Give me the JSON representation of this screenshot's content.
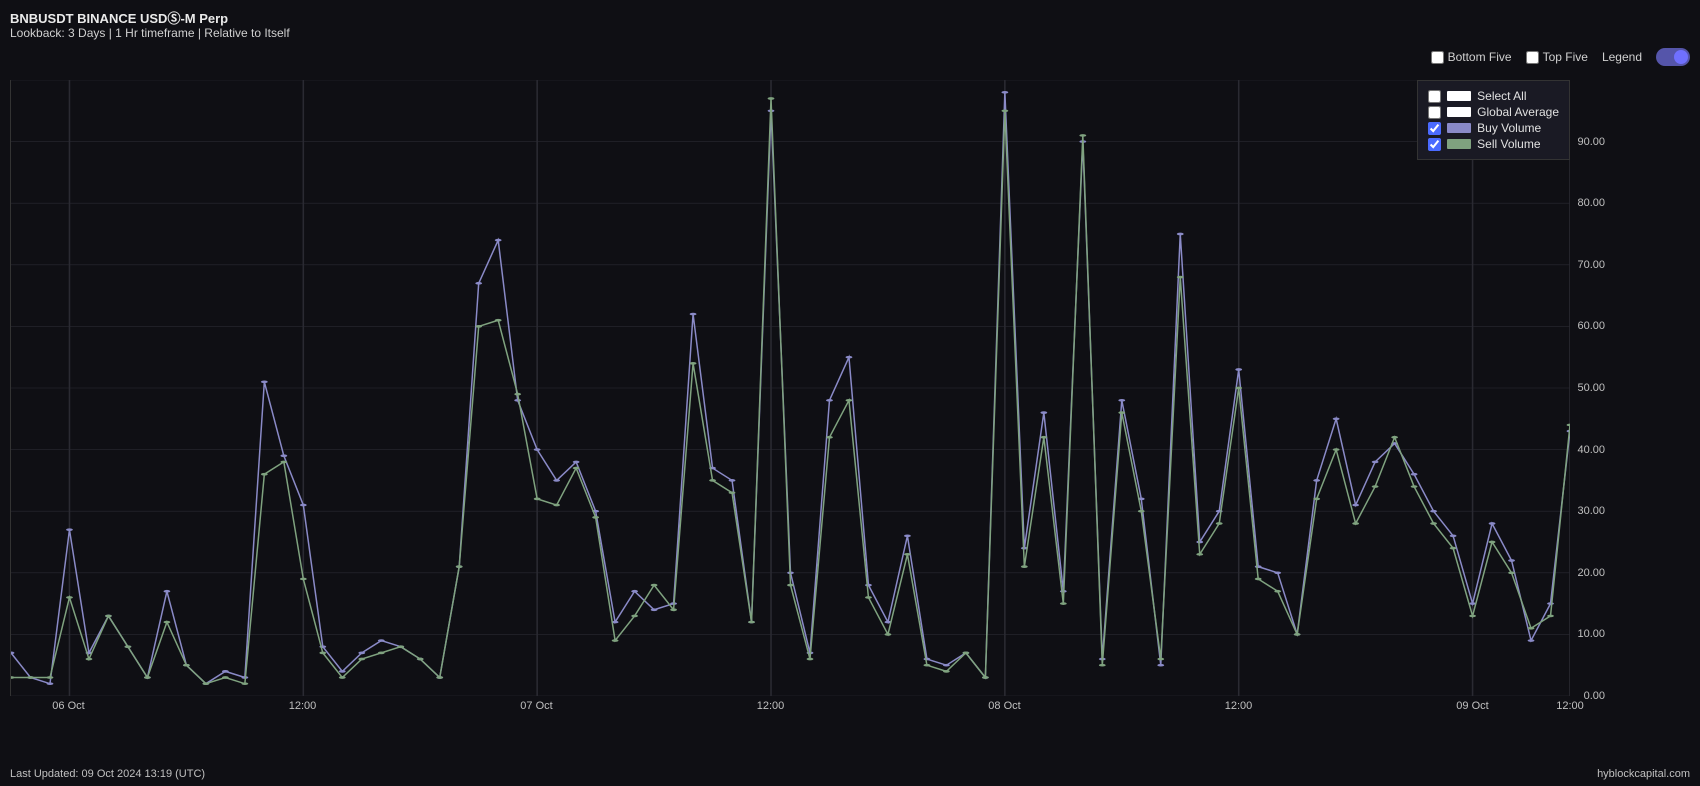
{
  "header": {
    "title": "BNBUSDT BINANCE USDⓈ-M Perp",
    "subtitle": "Lookback: 3 Days | 1 Hr timeframe | Relative to Itself"
  },
  "controls": {
    "bottom_five": "Bottom Five",
    "top_five": "Top Five",
    "legend_label": "Legend"
  },
  "legend": {
    "select_all": "Select All",
    "global_average": "Global Average",
    "buy_volume": "Buy Volume",
    "sell_volume": "Sell Volume",
    "select_all_checked": false,
    "global_average_checked": false,
    "buy_volume_checked": true,
    "sell_volume_checked": true,
    "select_all_color": "#ffffff",
    "global_average_color": "#ffffff",
    "buy_volume_color": "#8a8ac7",
    "sell_volume_color": "#7fa27f"
  },
  "chart": {
    "type": "line",
    "background_color": "#0f0f14",
    "grid_color": "#2a2a32",
    "ylim": [
      0,
      100
    ],
    "ytick_step": 10,
    "ytick_labels": [
      "0.00",
      "10.00",
      "20.00",
      "30.00",
      "40.00",
      "50.00",
      "60.00",
      "70.00",
      "80.00",
      "90.00"
    ],
    "x_count": 72,
    "x_gridlines_at": [
      3,
      15,
      27,
      39,
      51,
      63,
      72
    ],
    "x_tick_positions": [
      3,
      15,
      27,
      39,
      51,
      63,
      72
    ],
    "x_tick_labels": [
      "06 Oct",
      "12:00",
      "07 Oct",
      "12:00",
      "08 Oct",
      "12:00",
      "09 Oct",
      "12:00"
    ],
    "x_tick_labels_positions": [
      3,
      15,
      27,
      39,
      51,
      63,
      72,
      72
    ],
    "series": [
      {
        "name": "buy_volume",
        "color": "#8a8ac7",
        "data": [
          7,
          3,
          2,
          27,
          7,
          13,
          8,
          3,
          17,
          5,
          2,
          4,
          3,
          51,
          39,
          31,
          8,
          4,
          7,
          9,
          8,
          6,
          3,
          21,
          67,
          74,
          48,
          40,
          35,
          38,
          30,
          12,
          17,
          14,
          15,
          62,
          37,
          35,
          12,
          95,
          20,
          7,
          48,
          55,
          18,
          12,
          26,
          6,
          5,
          7,
          3,
          98,
          24,
          46,
          17,
          90,
          6,
          48,
          32,
          5,
          75,
          25,
          30,
          53,
          21,
          20,
          10,
          35,
          45,
          31,
          38,
          41
        ],
        "more": [
          36,
          30,
          26,
          15,
          28,
          22,
          9,
          15,
          43
        ]
      },
      {
        "name": "sell_volume",
        "color": "#7fa27f",
        "data": [
          3,
          3,
          3,
          16,
          6,
          13,
          8,
          3,
          12,
          5,
          2,
          3,
          2,
          36,
          38,
          19,
          7,
          3,
          6,
          7,
          8,
          6,
          3,
          21,
          60,
          61,
          49,
          32,
          31,
          37,
          29,
          9,
          13,
          18,
          14,
          54,
          35,
          33,
          12,
          97,
          18,
          6,
          42,
          48,
          16,
          10,
          23,
          5,
          4,
          7,
          3,
          95,
          21,
          42,
          15,
          91,
          5,
          46,
          30,
          6,
          68,
          23,
          28,
          50,
          19,
          17,
          10,
          32,
          40,
          28,
          34,
          42
        ],
        "more": [
          34,
          28,
          24,
          13,
          25,
          20,
          11,
          13,
          44
        ]
      }
    ]
  },
  "footer": {
    "left": "Last Updated: 09 Oct 2024 13:19 (UTC)",
    "right": "hyblockcapital.com"
  }
}
